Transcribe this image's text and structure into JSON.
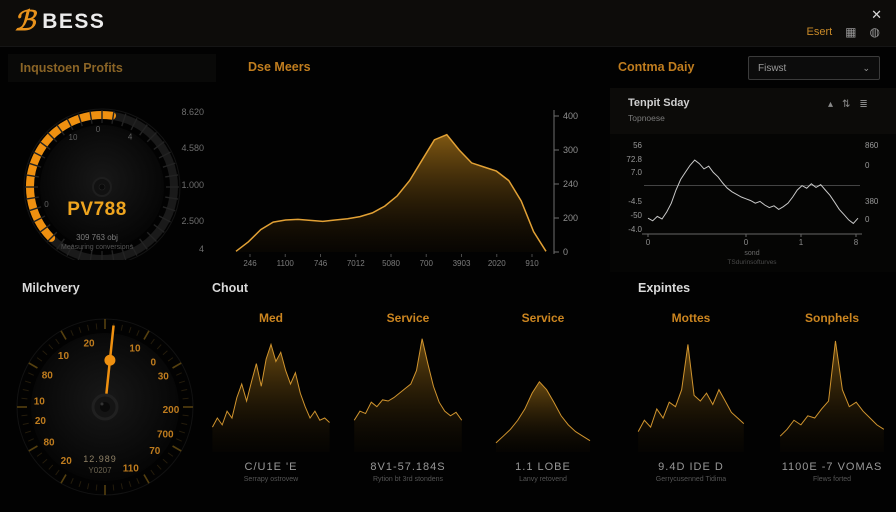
{
  "window": {
    "close_icon": "✕"
  },
  "topbar": {
    "brand": "BESS",
    "logo_glyph": "ℬ",
    "export_label": "Esert",
    "icons": {
      "columns": "▦",
      "globe": "◍"
    }
  },
  "header_row": {
    "profits_title": "Inqustoen Profits",
    "meers_title": "Dse Meers",
    "contma_title": "Contma Daiy",
    "dropdown_value": "Fiswst",
    "dropdown_chevron": "⌄"
  },
  "sections": {
    "milchvery": "Milchvery",
    "chout": "Chout",
    "expintes": "Expintes"
  },
  "tenpit": {
    "title": "Tenpit Sday",
    "subtitle": "Topnoese",
    "icons": [
      "▴",
      "⇅",
      "≣"
    ]
  },
  "colors": {
    "orange_arc": "#ef9010",
    "amber_line": "#e2a135",
    "amber_fill_top": "#8a5f14",
    "line_gray": "#c9c9c9",
    "axis_gray": "#6e6e6e",
    "label_gray": "#8f8f8f",
    "dial_label": "#bf7c1e",
    "spark_stroke": "#d0942e"
  },
  "chart_data": [
    {
      "id": "main_area",
      "type": "area",
      "x_labels": [
        "246",
        "1100",
        "746",
        "7012",
        "5080",
        "700",
        "3903",
        "2020",
        "910"
      ],
      "y_ticks": [
        "400",
        "300",
        "240",
        "200",
        "0"
      ],
      "ylim": [
        0,
        400
      ],
      "values": [
        2,
        30,
        66,
        88,
        94,
        96,
        93,
        90,
        94,
        98,
        104,
        115,
        135,
        165,
        210,
        270,
        330,
        345,
        300,
        262,
        250,
        238,
        210,
        150,
        60,
        2
      ]
    },
    {
      "id": "tenpit_line",
      "type": "line",
      "left_ticks": [
        "56",
        "72.8",
        "7.0",
        "-4.5",
        "-50",
        "-4.0"
      ],
      "right_ticks": [
        "860",
        "0",
        "380",
        "0"
      ],
      "x_ticks": [
        "0",
        "0",
        "1",
        "8"
      ],
      "footer1": "sond",
      "footer2": "TSdurinsofturves",
      "ref_value": 55,
      "ylim": [
        0,
        100
      ],
      "values": [
        18,
        15,
        20,
        17,
        25,
        35,
        50,
        62,
        70,
        78,
        84,
        80,
        74,
        77,
        70,
        65,
        58,
        52,
        48,
        45,
        42,
        40,
        38,
        35,
        37,
        33,
        30,
        32,
        28,
        31,
        35,
        42,
        50,
        55,
        52,
        57,
        53,
        56,
        50,
        44,
        36,
        28,
        22,
        16,
        12,
        18
      ]
    },
    {
      "id": "gauge_main",
      "type": "gauge",
      "value": "PV788",
      "sub1": "309 763 obj",
      "sub2": "Measuring conversions",
      "arc_start_deg": -135,
      "arc_end_deg": 8,
      "tick_labels": [
        {
          "t": "0",
          "a": -107
        },
        {
          "t": "10",
          "a": -30
        },
        {
          "t": "0",
          "a": -4
        },
        {
          "t": "4",
          "a": 29
        }
      ],
      "scale_labels": [
        "8.620",
        "4.580",
        "1.000",
        "2.500",
        "4"
      ]
    },
    {
      "id": "gauge_dial",
      "type": "gauge",
      "needle_angle_deg": 6,
      "value": "12.989",
      "sub": "Y0207",
      "dial_labels": [
        {
          "t": "20",
          "a": -14
        },
        {
          "t": "10",
          "a": 27
        },
        {
          "t": "0",
          "a": 47
        },
        {
          "t": "30",
          "a": 62
        },
        {
          "t": "200",
          "a": 92
        },
        {
          "t": "700",
          "a": 114
        },
        {
          "t": "70",
          "a": 131
        },
        {
          "t": "110",
          "a": 157
        },
        {
          "t": "20",
          "a": -144
        },
        {
          "t": "80",
          "a": -122
        },
        {
          "t": "20",
          "a": -102
        },
        {
          "t": "10",
          "a": -85
        },
        {
          "t": "80",
          "a": -61
        },
        {
          "t": "10",
          "a": -39
        }
      ]
    },
    {
      "id": "spark_med",
      "type": "area",
      "title": "Med",
      "value_label": "C/U1E 'E",
      "sub_label": "Serrapy ostrovew",
      "values": [
        22,
        30,
        24,
        36,
        30,
        48,
        60,
        45,
        62,
        78,
        58,
        82,
        95,
        80,
        88,
        72,
        60,
        70,
        52,
        40,
        30,
        36,
        28,
        30,
        26
      ]
    },
    {
      "id": "spark_service1",
      "type": "area",
      "title": "Service",
      "value_label": "8V1-57.184S",
      "sub_label": "Rytion bt 3rd stondens",
      "values": [
        28,
        36,
        34,
        44,
        40,
        46,
        45,
        48,
        52,
        56,
        60,
        72,
        100,
        78,
        58,
        44,
        36,
        32,
        35,
        28
      ]
    },
    {
      "id": "spark_service2",
      "type": "area",
      "title": "Service",
      "value_label": "1.1 LOBE",
      "sub_label": "Lanvy retovend",
      "values": [
        8,
        14,
        20,
        28,
        38,
        52,
        62,
        55,
        44,
        32,
        24,
        18,
        14,
        10
      ]
    },
    {
      "id": "spark_mottes",
      "type": "area",
      "title": "Mottes",
      "value_label": "9.4D IDE D",
      "sub_label": "Gerrycusenned Tidima",
      "values": [
        18,
        28,
        22,
        38,
        30,
        44,
        40,
        55,
        95,
        50,
        45,
        52,
        42,
        55,
        45,
        35,
        30,
        25
      ]
    },
    {
      "id": "spark_sonphels",
      "type": "area",
      "title": "Sonphels",
      "value_label": "1100E -7 VOMAS",
      "sub_label": "Flews forted",
      "values": [
        14,
        20,
        28,
        24,
        32,
        30,
        38,
        45,
        98,
        55,
        40,
        44,
        36,
        30,
        24,
        20
      ]
    }
  ]
}
